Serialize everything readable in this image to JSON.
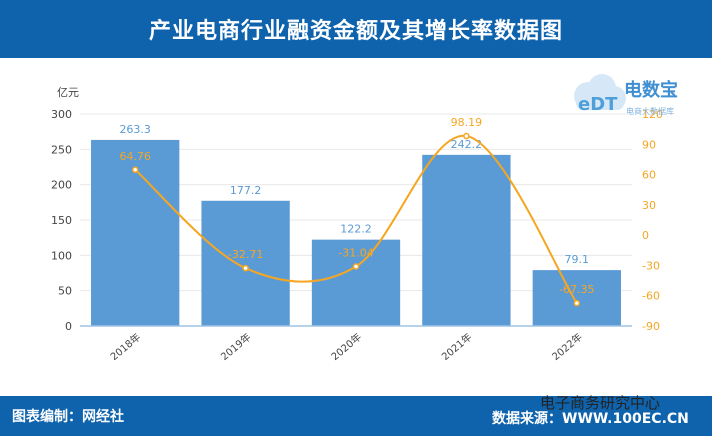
{
  "header": {
    "title": "产业电商行业融资金额及其增长率数据图"
  },
  "footer": {
    "left": "图表编制：网经社",
    "right": "数据来源：WWW.100EC.CN"
  },
  "watermark": {
    "text": "电子商务研究中心"
  },
  "logo": {
    "brand": "电数宝",
    "sub": "电商大数据库",
    "mark": "eDT"
  },
  "chart_data": {
    "type": "bar+line",
    "categories": [
      "2018年",
      "2019年",
      "2020年",
      "2021年",
      "2022年"
    ],
    "series": [
      {
        "values": [
          263.3,
          177.2,
          122.2,
          242.2,
          79.1
        ],
        "axis": "left",
        "color": "#5b9bd5"
      },
      {
        "values": [
          64.76,
          -32.71,
          -31.04,
          98.19,
          -67.35
        ],
        "axis": "right",
        "color": "#f5a623"
      }
    ],
    "ylabel": "亿元",
    "ylim": [
      0,
      300
    ],
    "yticks": [
      0,
      50,
      100,
      150,
      200,
      250,
      300
    ],
    "y2lim": [
      -90,
      120
    ],
    "y2ticks": [
      -90,
      -60,
      -30,
      0,
      30,
      60,
      90,
      120
    ],
    "grid": true
  }
}
